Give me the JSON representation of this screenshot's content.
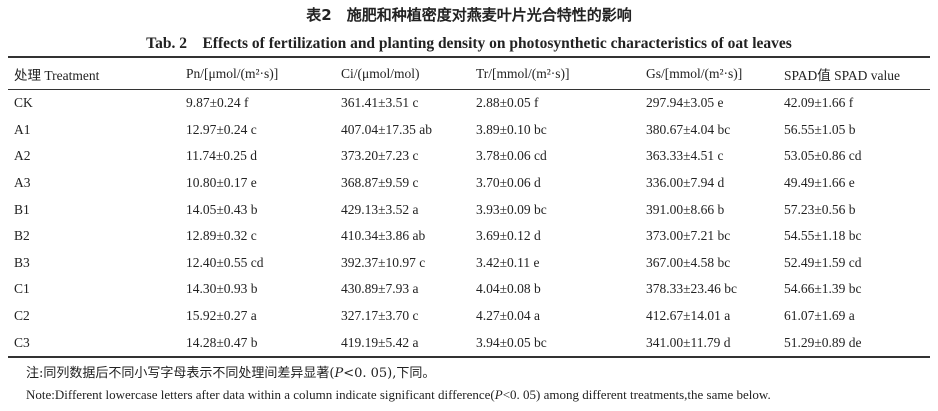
{
  "title_cn": "表2　施肥和种植密度对燕麦叶片光合特性的影响",
  "title_en": "Tab. 2　Effects of fertilization and planting density on photosynthetic characteristics of oat leaves",
  "table": {
    "header": [
      "处理 Treatment",
      "Pn/[μmol/(m²·s)]",
      "Ci/(μmol/mol)",
      "Tr/[mmol/(m²·s)]",
      "Gs/[mmol/(m²·s)]",
      "SPAD值 SPAD value"
    ],
    "rows": [
      [
        "CK",
        "9.87±0.24 f",
        "361.41±3.51 c",
        "2.88±0.05 f",
        "297.94±3.05 e",
        "42.09±1.66 f"
      ],
      [
        "A1",
        "12.97±0.24 c",
        "407.04±17.35 ab",
        "3.89±0.10 bc",
        "380.67±4.04 bc",
        "56.55±1.05 b"
      ],
      [
        "A2",
        "11.74±0.25 d",
        "373.20±7.23 c",
        "3.78±0.06 cd",
        "363.33±4.51 c",
        "53.05±0.86 cd"
      ],
      [
        "A3",
        "10.80±0.17 e",
        "368.87±9.59 c",
        "3.70±0.06 d",
        "336.00±7.94 d",
        "49.49±1.66 e"
      ],
      [
        "B1",
        "14.05±0.43 b",
        "429.13±3.52 a",
        "3.93±0.09 bc",
        "391.00±8.66 b",
        "57.23±0.56 b"
      ],
      [
        "B2",
        "12.89±0.32 c",
        "410.34±3.86 ab",
        "3.69±0.12 d",
        "373.00±7.21 bc",
        "54.55±1.18 bc"
      ],
      [
        "B3",
        "12.40±0.55 cd",
        "392.37±10.97 c",
        "3.42±0.11 e",
        "367.00±4.58 bc",
        "52.49±1.59 cd"
      ],
      [
        "C1",
        "14.30±0.93 b",
        "430.89±7.93 a",
        "4.04±0.08 b",
        "378.33±23.46 bc",
        "54.66±1.39 bc"
      ],
      [
        "C2",
        "15.92±0.27 a",
        "327.17±3.70 c",
        "4.27±0.04 a",
        "412.67±14.01 a",
        "61.07±1.69 a"
      ],
      [
        "C3",
        "14.28±0.47 b",
        "419.19±5.42 a",
        "3.94±0.05 bc",
        "341.00±11.79 d",
        "51.29±0.89 de"
      ]
    ]
  },
  "note_cn": [
    "注:同列数据后不同小写字母表示不同处理间差异显著(",
    "P",
    "<0. 05),下同。"
  ],
  "note_en": [
    "Note:Different lowercase letters after data within a column indicate significant difference(",
    "P",
    "<0. 05) among different treatments,the same below."
  ]
}
